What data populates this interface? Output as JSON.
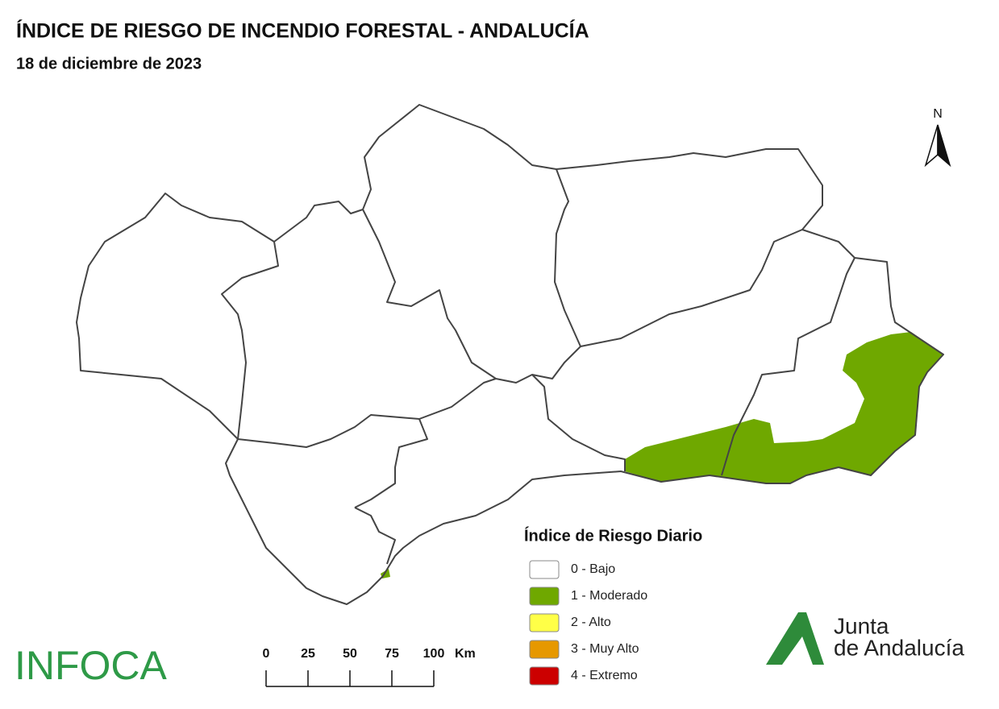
{
  "header": {
    "title": "ÍNDICE DE RIESGO DE INCENDIO FORESTAL - ANDALUCÍA",
    "subtitle": "18 de diciembre de 2023"
  },
  "north": "N",
  "legend": {
    "title": "Índice de Riesgo Diario",
    "items": [
      {
        "label": "0 - Bajo",
        "color": "#ffffff"
      },
      {
        "label": "1 - Moderado",
        "color": "#6fa800"
      },
      {
        "label": "2 - Alto",
        "color": "#ffff47"
      },
      {
        "label": "3 - Muy Alto",
        "color": "#e69800"
      },
      {
        "label": "4 - Extremo",
        "color": "#cc0000"
      }
    ]
  },
  "scale_bar": {
    "ticks": [
      0,
      25,
      50,
      75,
      100
    ],
    "unit": "Km"
  },
  "logos": {
    "infoca": "INFOCA",
    "junta": [
      "Junta",
      "de Andalucía"
    ]
  }
}
